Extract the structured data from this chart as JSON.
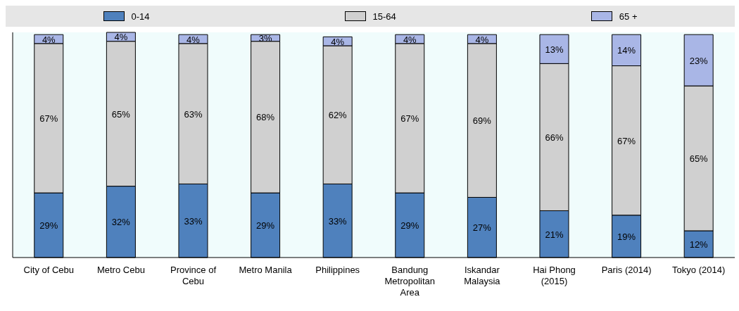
{
  "chart_data": {
    "type": "bar",
    "stacked": true,
    "legend": "top",
    "categories": [
      "City of Cebu",
      "Metro Cebu",
      "Province of Cebu",
      "Metro Manila",
      "Philippines",
      "Bandung Metropolitan Area",
      "Iskandar Malaysia",
      "Hai Phong (2015)",
      "Paris (2014)",
      "Tokyo (2014)"
    ],
    "series": [
      {
        "name": "0-14",
        "color": "#4f81bd",
        "values": [
          29,
          32,
          33,
          29,
          33,
          29,
          27,
          21,
          19,
          12
        ],
        "value_labels": [
          "29%",
          "32%",
          "33%",
          "29%",
          "33%",
          "29%",
          "27%",
          "21%",
          "19%",
          "12%"
        ]
      },
      {
        "name": "15-64",
        "color": "#d0d0d0",
        "values": [
          67,
          65,
          63,
          68,
          62,
          67,
          69,
          66,
          67,
          65
        ],
        "value_labels": [
          "67%",
          "65%",
          "63%",
          "68%",
          "62%",
          "67%",
          "69%",
          "66%",
          "67%",
          "65%"
        ]
      },
      {
        "name": "65 +",
        "color": "#a9b6e6",
        "values": [
          4,
          4,
          4,
          3,
          4,
          4,
          4,
          13,
          14,
          23
        ],
        "value_labels": [
          "4%",
          "4%",
          "4%",
          "3%",
          "4%",
          "4%",
          "4%",
          "13%",
          "14%",
          "23%"
        ]
      }
    ]
  }
}
